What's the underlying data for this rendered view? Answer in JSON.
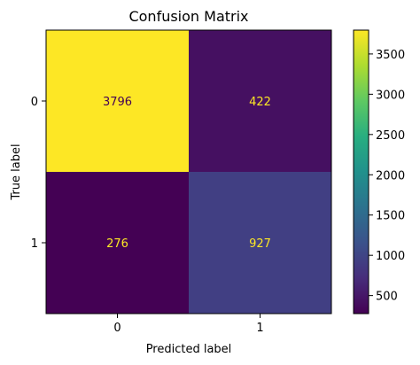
{
  "chart_data": {
    "type": "heatmap",
    "title": "Confusion Matrix",
    "xlabel": "Predicted label",
    "ylabel": "True label",
    "x_categories": [
      "0",
      "1"
    ],
    "y_categories": [
      "0",
      "1"
    ],
    "values": [
      [
        3796,
        422
      ],
      [
        276,
        927
      ]
    ],
    "colorbar": {
      "colormap": "viridis",
      "vmin": 276,
      "vmax": 3796,
      "ticks": [
        500,
        1000,
        1500,
        2000,
        2500,
        3000,
        3500
      ]
    },
    "cell_text_colors": {
      "on_dark": "#fde725",
      "on_light": "#440154"
    }
  }
}
